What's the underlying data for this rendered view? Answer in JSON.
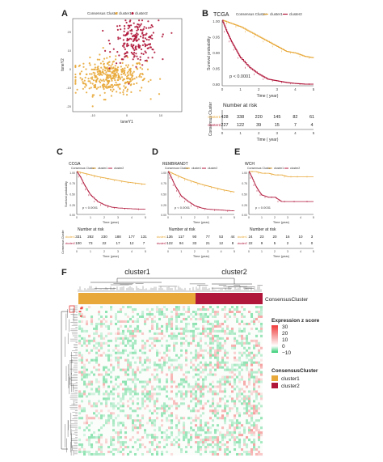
{
  "colors": {
    "cluster1": "#E8A93A",
    "cluster2": "#B0163A",
    "heat_high": "#F03A3A",
    "heat_mid": "#FFFFFF",
    "heat_low": "#2ECC71",
    "axis": "#333333"
  },
  "panels": {
    "A": {
      "letter": "A",
      "legend_title": "Consensus Cluster",
      "legend_items": [
        "cluster1",
        "cluster2"
      ],
      "xlabel": "tsneY1",
      "ylabel": "tsneY2",
      "xticks": [
        "-10",
        "0",
        "10"
      ],
      "yticks": [
        "-20",
        "-10",
        "0",
        "10",
        "20"
      ]
    },
    "B": {
      "letter": "B",
      "cohort": "TCGA",
      "legend_title": "Consensus Cluster",
      "legend_items": [
        "cluster1",
        "cluster2"
      ],
      "ylabel": "Survival probability",
      "xlabel": "Time ( year)",
      "pvalue": "p < 0.0001",
      "yticks": [
        "1.00",
        "0.95",
        "0.90",
        "0.85",
        "0.80"
      ],
      "xticks": [
        "0",
        "1",
        "2",
        "3",
        "4",
        "5"
      ],
      "risk_title": "Number at risk",
      "risk_side_label": "Consensus Cluster",
      "risk_rows": [
        {
          "label": "cluster1",
          "values": [
            "428",
            "338",
            "220",
            "145",
            "82",
            "61"
          ]
        },
        {
          "label": "cluster2",
          "values": [
            "227",
            "122",
            "39",
            "15",
            "7",
            "4"
          ]
        }
      ],
      "risk_xlabel": "Time ( year)"
    },
    "C": {
      "letter": "C",
      "cohort": "CCGA",
      "legend_title": "Consensus Cluster",
      "legend_items": [
        "cluster1",
        "cluster2"
      ],
      "ylabel": "Survival probability",
      "xlabel": "Time (year)",
      "pvalue": "p < 0.0001",
      "yticks": [
        "1.00",
        "0.75",
        "0.50",
        "0.25",
        "0.00"
      ],
      "xticks": [
        "0",
        "1",
        "2",
        "3",
        "4",
        "5"
      ],
      "risk_title": "Number at risk",
      "risk_side_label": "Consensus Cluster",
      "risk_rows": [
        {
          "label": "cluster1",
          "values": [
            "331",
            "282",
            "230",
            "188",
            "177",
            "131"
          ]
        },
        {
          "label": "cluster2",
          "values": [
            "100",
            "73",
            "22",
            "17",
            "12",
            "7"
          ]
        }
      ],
      "risk_xlabel": "Time (year)"
    },
    "D": {
      "letter": "D",
      "cohort": "REMBRANDT",
      "legend_title": "Consensus Cluster",
      "legend_items": [
        "cluster1",
        "cluster2"
      ],
      "xlabel": "Time (year)",
      "pvalue": "p < 0.0001",
      "yticks": [
        "1.00",
        "0.75",
        "0.50",
        "0.25",
        "0.00"
      ],
      "xticks": [
        "0",
        "1",
        "2",
        "3",
        "4",
        "5"
      ],
      "risk_title": "Number at risk",
      "risk_rows": [
        {
          "label": "cluster1",
          "values": [
            "136",
            "117",
            "90",
            "77",
            "53",
            "44"
          ]
        },
        {
          "label": "cluster2",
          "values": [
            "122",
            "94",
            "33",
            "21",
            "12",
            "8"
          ]
        }
      ],
      "risk_xlabel": "Time (year)"
    },
    "E": {
      "letter": "E",
      "cohort": "WCH",
      "legend_title": "Consensus Cluster",
      "legend_items": [
        "cluster1",
        "cluster2"
      ],
      "xlabel": "Time (year)",
      "pvalue": "p = 0.0031",
      "yticks": [
        "1.00",
        "0.75",
        "0.50",
        "0.25",
        "0.00"
      ],
      "xticks": [
        "0",
        "1",
        "2",
        "3",
        "4",
        "5"
      ],
      "risk_title": "Number at risk",
      "risk_rows": [
        {
          "label": "cluster1",
          "values": [
            "24",
            "23",
            "20",
            "16",
            "10",
            "3"
          ]
        },
        {
          "label": "cluster2",
          "values": [
            "22",
            "9",
            "5",
            "2",
            "1",
            "0"
          ]
        }
      ],
      "risk_xlabel": "Time (year)"
    },
    "F": {
      "letter": "F",
      "cluster1_label": "cluster1",
      "cluster2_label": "cluster2",
      "annotation_label": "ConsensusCluster",
      "scale_title": "Expression z score",
      "scale_ticks": [
        "30",
        "20",
        "10",
        "0",
        "−10"
      ],
      "legend2_title": "ConsensusCluster",
      "legend2_items": [
        "cluster1",
        "cluster2"
      ]
    }
  },
  "chart_data": [
    {
      "type": "scatter",
      "panel": "A",
      "xlabel": "tsneY1",
      "ylabel": "tsneY2",
      "xlim": [
        -20,
        20
      ],
      "ylim": [
        -28,
        25
      ],
      "series": [
        {
          "name": "cluster1",
          "centroid": [
            -6,
            -8
          ],
          "approx_n": 428
        },
        {
          "name": "cluster2",
          "centroid": [
            3,
            12
          ],
          "approx_n": 227
        }
      ]
    },
    {
      "type": "line",
      "panel": "B",
      "xlabel": "Time ( year)",
      "ylabel": "Survival probability",
      "xlim": [
        0,
        5
      ],
      "ylim": [
        0.8,
        1.0
      ],
      "series": [
        {
          "name": "cluster1",
          "x": [
            0,
            0.5,
            1,
            1.5,
            2,
            2.5,
            3,
            3.5,
            4,
            4.5,
            5
          ],
          "y": [
            1.0,
            0.99,
            0.98,
            0.965,
            0.95,
            0.935,
            0.92,
            0.905,
            0.9,
            0.89,
            0.885
          ]
        },
        {
          "name": "cluster2",
          "x": [
            0,
            0.25,
            0.5,
            0.75,
            1,
            1.5,
            2,
            2.5,
            3,
            3.5,
            4,
            4.5,
            5
          ],
          "y": [
            1.0,
            0.965,
            0.935,
            0.91,
            0.885,
            0.855,
            0.835,
            0.82,
            0.815,
            0.81,
            0.807,
            0.805,
            0.805
          ]
        }
      ]
    },
    {
      "type": "line",
      "panel": "C",
      "xlabel": "Time (year)",
      "ylabel": "Survival probability",
      "xlim": [
        0,
        5
      ],
      "ylim": [
        0,
        1
      ],
      "series": [
        {
          "name": "cluster1",
          "x": [
            0,
            0.5,
            1,
            1.5,
            2,
            2.5,
            3,
            3.5,
            4,
            4.5,
            5
          ],
          "y": [
            1.0,
            0.96,
            0.92,
            0.88,
            0.85,
            0.82,
            0.79,
            0.76,
            0.74,
            0.72,
            0.7
          ]
        },
        {
          "name": "cluster2",
          "x": [
            0,
            0.25,
            0.5,
            0.75,
            1,
            1.5,
            2,
            2.5,
            3,
            4,
            5
          ],
          "y": [
            1.0,
            0.88,
            0.72,
            0.58,
            0.45,
            0.3,
            0.22,
            0.17,
            0.15,
            0.13,
            0.12
          ]
        }
      ]
    },
    {
      "type": "line",
      "panel": "D",
      "xlabel": "Time (year)",
      "xlim": [
        0,
        5
      ],
      "ylim": [
        0,
        1
      ],
      "series": [
        {
          "name": "cluster1",
          "x": [
            0,
            0.5,
            1,
            1.5,
            2,
            2.5,
            3,
            3.5,
            4,
            4.5,
            5
          ],
          "y": [
            1.0,
            0.93,
            0.86,
            0.8,
            0.75,
            0.7,
            0.66,
            0.62,
            0.58,
            0.55,
            0.52
          ]
        },
        {
          "name": "cluster2",
          "x": [
            0,
            0.25,
            0.5,
            0.75,
            1,
            1.5,
            2,
            2.5,
            3,
            4,
            5
          ],
          "y": [
            1.0,
            0.85,
            0.68,
            0.55,
            0.42,
            0.3,
            0.2,
            0.15,
            0.12,
            0.1,
            0.08
          ]
        }
      ]
    },
    {
      "type": "line",
      "panel": "E",
      "xlabel": "Time (year)",
      "xlim": [
        0,
        5
      ],
      "ylim": [
        0,
        1
      ],
      "series": [
        {
          "name": "cluster1",
          "x": [
            0,
            0.5,
            1,
            1.5,
            2,
            2.5,
            3,
            3.5,
            4,
            5
          ],
          "y": [
            1.0,
            1.0,
            0.96,
            0.96,
            0.92,
            0.92,
            0.88,
            0.88,
            0.88,
            0.88
          ]
        },
        {
          "name": "cluster2",
          "x": [
            0,
            0.25,
            0.5,
            0.75,
            1,
            1.5,
            2,
            2.5,
            3,
            4,
            5
          ],
          "y": [
            1.0,
            0.85,
            0.68,
            0.55,
            0.45,
            0.4,
            0.4,
            0.3,
            0.3,
            0.3,
            0.3
          ]
        }
      ]
    },
    {
      "type": "heatmap",
      "panel": "F",
      "column_groups": [
        "cluster1",
        "cluster2"
      ],
      "color_scale": {
        "min": -10,
        "max": 30,
        "ticks": [
          30,
          20,
          10,
          0,
          -10
        ]
      }
    }
  ]
}
